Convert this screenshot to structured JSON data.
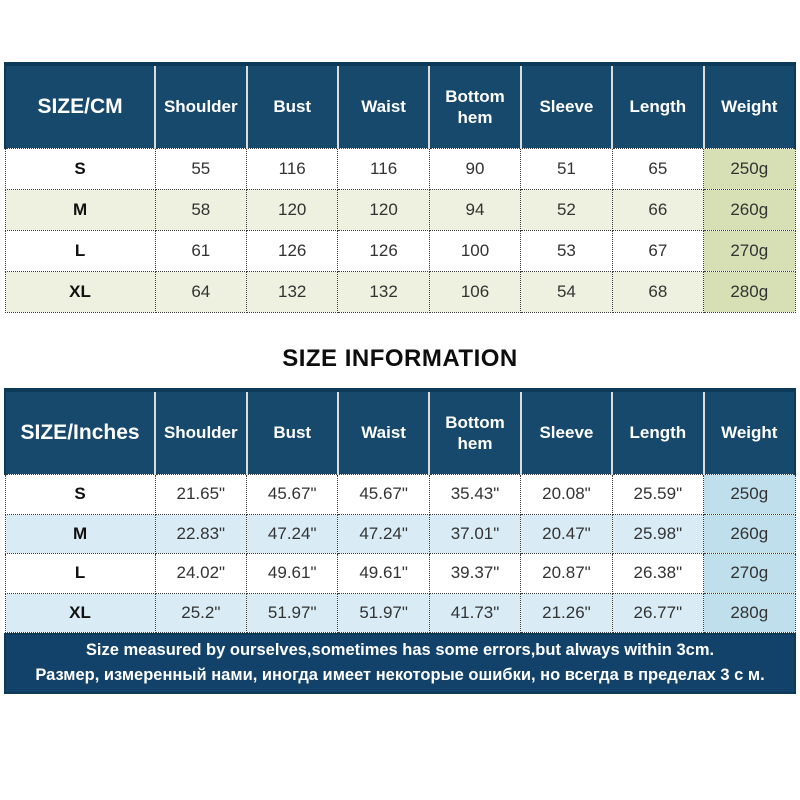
{
  "heading": "SIZE INFORMATION",
  "colors": {
    "header_navy": "#17496d",
    "header_top_edge": "#0d3a59",
    "footer_navy": "#12426a",
    "green_row": "#eef1e0",
    "green_weight_column": "#d7dfb5",
    "blue_row": "#d9ecf6",
    "blue_weight_column": "#bfdfec",
    "cell_border_dotted": "#3a3a3a",
    "header_separator": "#dcdcdc",
    "body_text": "#333333",
    "header_text": "#ffffff"
  },
  "table_cm": {
    "corner_label": "SIZE/CM",
    "columns": [
      "Shoulder",
      "Bust",
      "Waist",
      "Bottom hem",
      "Sleeve",
      "Length",
      "Weight"
    ],
    "rows": [
      {
        "size": "S",
        "values": [
          "55",
          "116",
          "116",
          "90",
          "51",
          "65",
          "250g"
        ]
      },
      {
        "size": "M",
        "values": [
          "58",
          "120",
          "120",
          "94",
          "52",
          "66",
          "260g"
        ]
      },
      {
        "size": "L",
        "values": [
          "61",
          "126",
          "126",
          "100",
          "53",
          "67",
          "270g"
        ]
      },
      {
        "size": "XL",
        "values": [
          "64",
          "132",
          "132",
          "106",
          "54",
          "68",
          "280g"
        ]
      }
    ]
  },
  "table_inches": {
    "corner_label": "SIZE/Inches",
    "columns": [
      "Shoulder",
      "Bust",
      "Waist",
      "Bottom hem",
      "Sleeve",
      "Length",
      "Weight"
    ],
    "rows": [
      {
        "size": "S",
        "values": [
          "21.65\"",
          "45.67\"",
          "45.67\"",
          "35.43\"",
          "20.08\"",
          "25.59\"",
          "250g"
        ]
      },
      {
        "size": "M",
        "values": [
          "22.83\"",
          "47.24\"",
          "47.24\"",
          "37.01\"",
          "20.47\"",
          "25.98\"",
          "260g"
        ]
      },
      {
        "size": "L",
        "values": [
          "24.02\"",
          "49.61\"",
          "49.61\"",
          "39.37\"",
          "20.87\"",
          "26.38\"",
          "270g"
        ]
      },
      {
        "size": "XL",
        "values": [
          "25.2\"",
          "51.97\"",
          "51.97\"",
          "41.73\"",
          "21.26\"",
          "26.77\"",
          "280g"
        ]
      }
    ]
  },
  "note": {
    "line_en": "Size measured by ourselves,sometimes has some errors,but always within 3cm.",
    "line_ru": "Размер, измеренный нами, иногда имеет некоторые ошибки, но всегда в пределах 3 с м."
  }
}
